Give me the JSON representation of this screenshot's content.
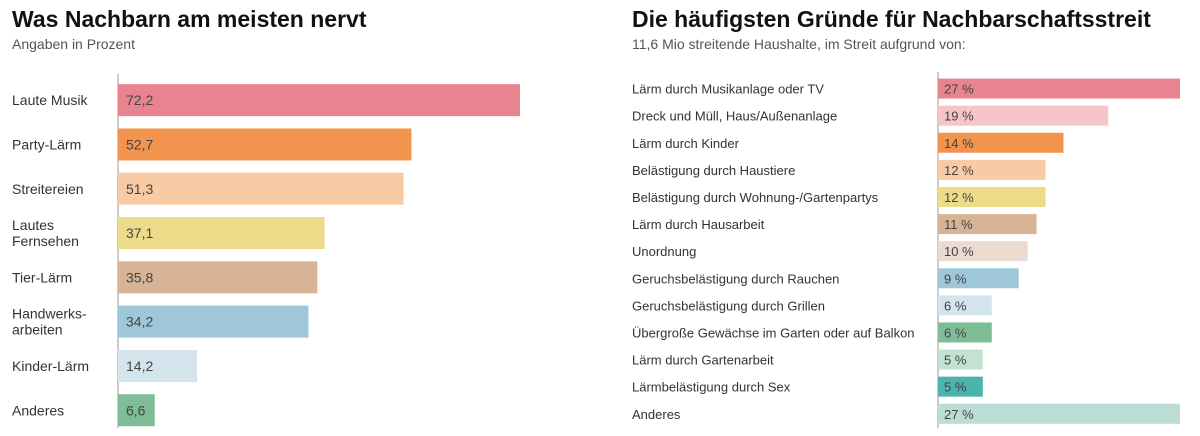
{
  "chart_data": [
    {
      "type": "bar",
      "orientation": "horizontal",
      "title": "Was Nachbarn am meisten nervt",
      "subtitle": "Angaben in Prozent",
      "categories": [
        "Laute Musik",
        "Party-Lärm",
        "Streitereien",
        "Lautes Fernsehen",
        "Tier-Lärm",
        "Handwerks-arbeiten",
        "Kinder-Lärm",
        "Anderes"
      ],
      "category_lines": [
        [
          "Laute Musik"
        ],
        [
          "Party-Lärm"
        ],
        [
          "Streitereien"
        ],
        [
          "Lautes",
          "Fernsehen"
        ],
        [
          "Tier-Lärm"
        ],
        [
          "Handwerks-",
          "arbeiten"
        ],
        [
          "Kinder-Lärm"
        ],
        [
          "Anderes"
        ]
      ],
      "values": [
        72.2,
        52.7,
        51.3,
        37.1,
        35.8,
        34.2,
        14.2,
        6.6
      ],
      "value_labels": [
        "72,2",
        "52,7",
        "51,3",
        "37,1",
        "35,8",
        "34,2",
        "14,2",
        "6,6"
      ],
      "colors": [
        "#e8848f",
        "#f2934e",
        "#f9cba4",
        "#ecdc8a",
        "#d6b495",
        "#9ec8da",
        "#d3e4ec",
        "#7fbd96"
      ],
      "xlim": [
        0,
        72.2
      ],
      "grid": false
    },
    {
      "type": "bar",
      "orientation": "horizontal",
      "title": "Die häufigsten Gründe für Nachbarschaftsstreit",
      "subtitle": "11,6 Mio streitende Haushalte, im Streit aufgrund von:",
      "categories": [
        "Lärm durch Musikanlage oder TV",
        "Dreck und Müll, Haus/Außenanlage",
        "Lärm durch Kinder",
        "Belästigung durch Haustiere",
        "Belästigung durch Wohnung-/Gartenpartys",
        "Lärm durch Hausarbeit",
        "Unordnung",
        "Geruchsbelästigung durch Rauchen",
        "Geruchsbelästigung durch Grillen",
        "Übergroße Gewächse im Garten oder auf Balkon",
        "Lärm durch Gartenarbeit",
        "Lärmbelästigung durch Sex",
        "Anderes"
      ],
      "values": [
        27,
        19,
        14,
        12,
        12,
        11,
        10,
        9,
        6,
        6,
        5,
        5,
        27
      ],
      "value_labels": [
        "27 %",
        "19 %",
        "14 %",
        "12 %",
        "12 %",
        "11 %",
        "10 %",
        "9 %",
        "6 %",
        "6 %",
        "5 %",
        "5 %",
        "27 %"
      ],
      "colors": [
        "#e8848f",
        "#f5c5c7",
        "#f2934e",
        "#f9cba4",
        "#ecdc8a",
        "#d6b495",
        "#ebdad0",
        "#9ec8da",
        "#d3e4ec",
        "#7fbd96",
        "#c4e2d2",
        "#4cb3ad",
        "#bcdcd6"
      ],
      "xlim": [
        0,
        27
      ],
      "grid": false
    }
  ]
}
